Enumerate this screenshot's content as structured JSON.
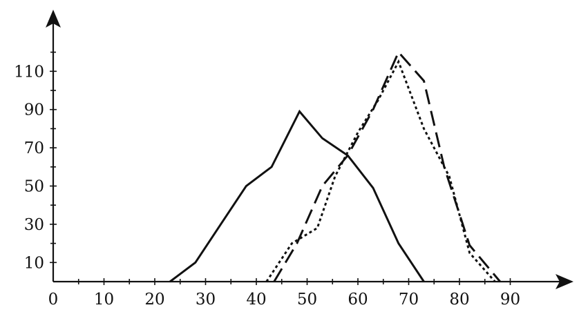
{
  "chart_data": {
    "type": "line",
    "title": "",
    "xlabel": "",
    "ylabel": "",
    "xlim": [
      0,
      95
    ],
    "ylim": [
      0,
      122
    ],
    "x_ticks": [
      0,
      10,
      20,
      30,
      40,
      50,
      60,
      70,
      80,
      90
    ],
    "x_minor_ticks": [
      5,
      15,
      25,
      35,
      45,
      55,
      65,
      75,
      85
    ],
    "y_ticks": [
      10,
      30,
      50,
      70,
      90,
      110
    ],
    "y_minor_ticks": [
      20,
      40,
      60,
      80,
      100,
      120
    ],
    "grid": false,
    "legend": "none",
    "series": [
      {
        "style": "solid",
        "color": "#111111",
        "x": [
          23,
          28,
          33,
          38,
          43,
          48.5,
          53,
          58,
          63,
          68,
          73
        ],
        "y": [
          0,
          10,
          30,
          50,
          60,
          89,
          75,
          66,
          49,
          20,
          0
        ]
      },
      {
        "style": "dashed",
        "color": "#111111",
        "x": [
          43.5,
          48,
          53,
          58,
          63,
          68,
          73,
          77,
          82,
          88
        ],
        "y": [
          0,
          20,
          50,
          66,
          90,
          120,
          105,
          60,
          19,
          0
        ]
      },
      {
        "style": "dotted",
        "color": "#111111",
        "x": [
          42,
          47,
          52,
          55.5,
          60,
          64,
          68,
          73,
          78,
          82,
          87
        ],
        "y": [
          0,
          20,
          28,
          55,
          78,
          95,
          115,
          80,
          55,
          15,
          0
        ]
      }
    ]
  }
}
